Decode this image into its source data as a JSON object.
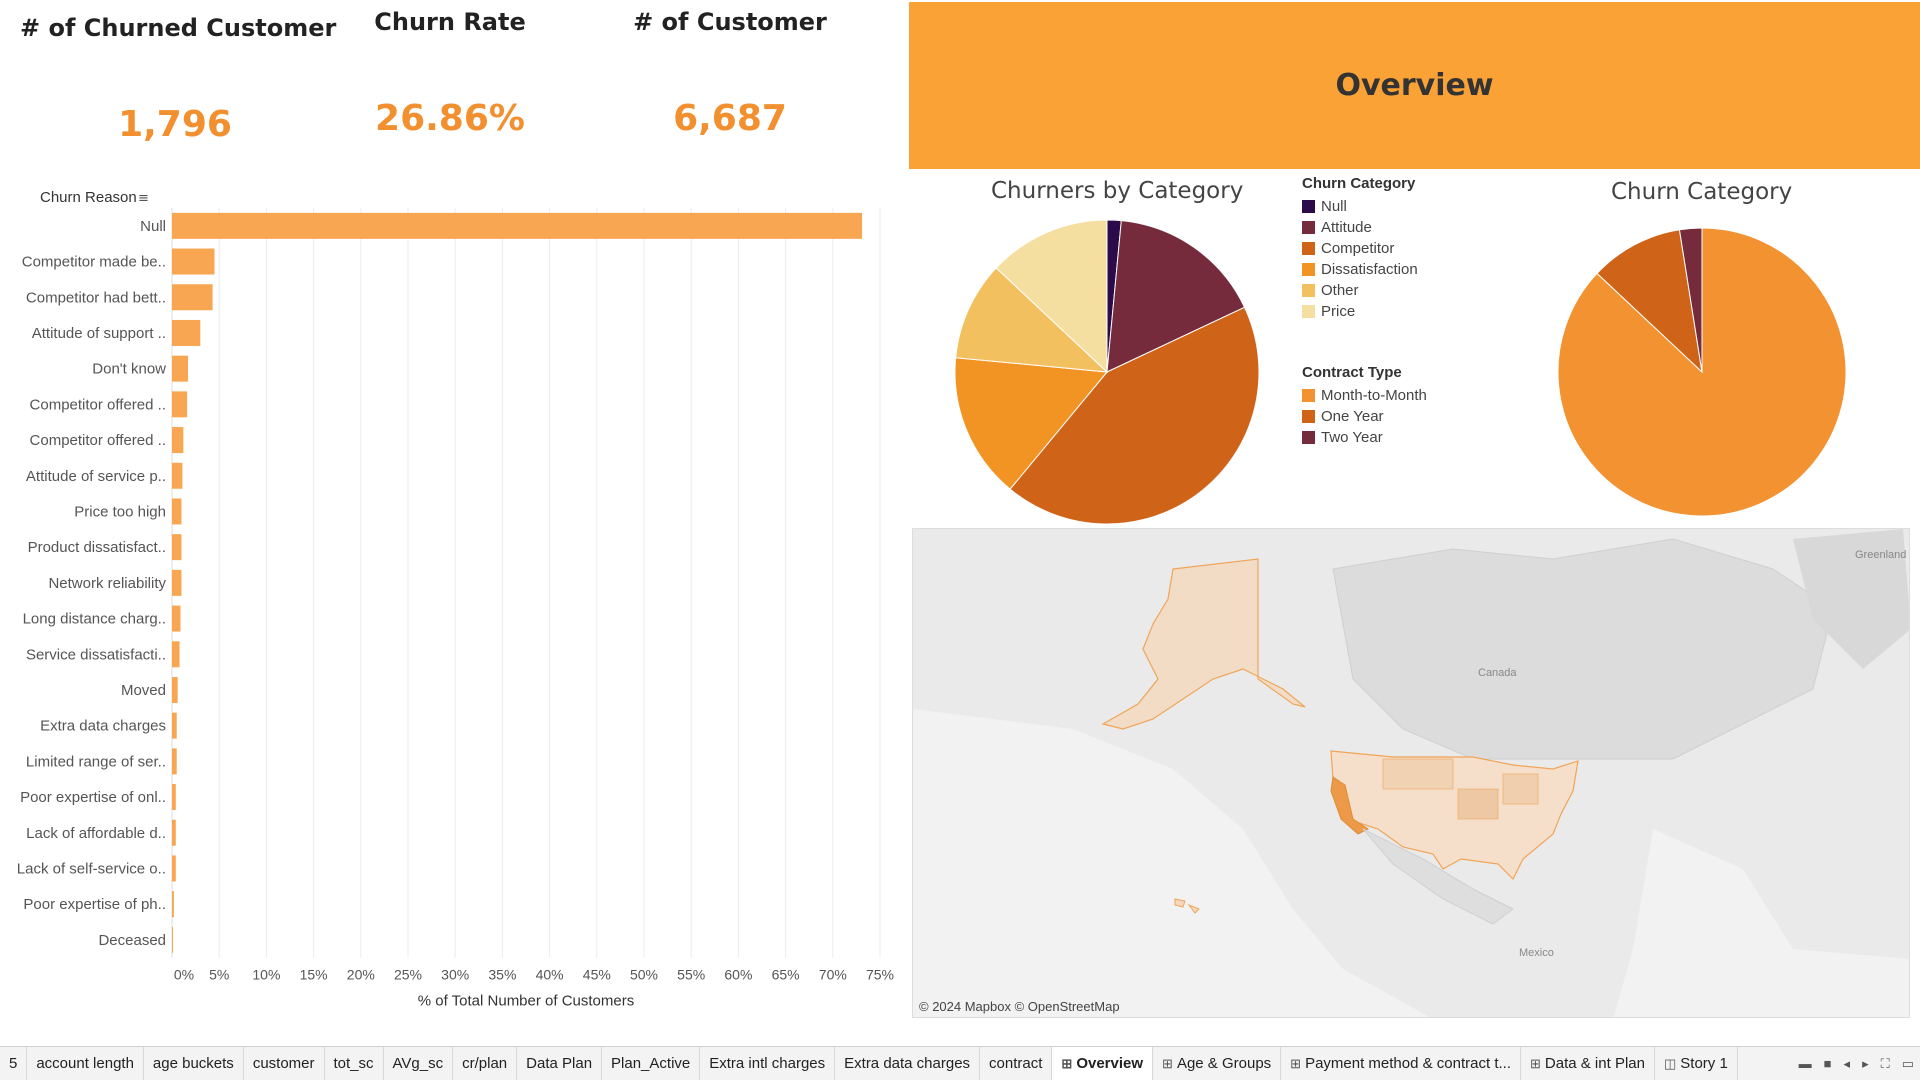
{
  "kpis": {
    "churned": {
      "title": "# of Churned Customer",
      "value": "1,796"
    },
    "rate": {
      "title": "Churn Rate",
      "value": "26.86%"
    },
    "customers": {
      "title": "# of Customer",
      "value": "6,687"
    }
  },
  "banner": {
    "title": "Overview"
  },
  "colors": {
    "accent": "#faa236",
    "kpi_value": "#f2902f",
    "bar": "#f8a652",
    "null": "#2b0b4a",
    "attitude": "#752b3c",
    "competitor": "#cf6419",
    "dissatisfaction": "#f29423",
    "other": "#f3c060",
    "price": "#f5dfa0",
    "month_to_month": "#f29230",
    "one_year": "#cf6419",
    "two_year": "#752b3c"
  },
  "bar_chart": {
    "header": "Churn Reason",
    "xlabel": "% of Total Number of Customers"
  },
  "pie1": {
    "title": "Churners by Category"
  },
  "pie2": {
    "title": "Churn Category"
  },
  "legend_category": {
    "title": "Churn Category",
    "items": [
      "Null",
      "Attitude",
      "Competitor",
      "Dissatisfaction",
      "Other",
      "Price"
    ]
  },
  "legend_contract": {
    "title": "Contract Type",
    "items": [
      "Month-to-Month",
      "One Year",
      "Two Year"
    ]
  },
  "map": {
    "labels": {
      "canada": "Canada",
      "greenland": "Greenland",
      "mexico": "Mexico"
    },
    "credit": "© 2024 Mapbox © OpenStreetMap"
  },
  "chart_data": [
    {
      "type": "bar",
      "orientation": "horizontal",
      "ylabel": "Churn Reason",
      "xlabel": "% of Total Number of Customers",
      "categories": [
        "Null",
        "Competitor made be..",
        "Competitor had bett..",
        "Attitude of support ..",
        "Don't know",
        "Competitor offered ..",
        "Competitor offered ..",
        "Attitude of service p..",
        "Price too high",
        "Product dissatisfact..",
        "Network reliability",
        "Long distance charg..",
        "Service dissatisfacti..",
        "Moved",
        "Extra data charges",
        "Limited range of ser..",
        "Poor expertise of onl..",
        "Lack of affordable d..",
        "Lack of self-service o..",
        "Poor expertise of ph..",
        "Deceased"
      ],
      "values": [
        73.1,
        4.5,
        4.3,
        3.0,
        1.7,
        1.6,
        1.2,
        1.1,
        1.0,
        1.0,
        1.0,
        0.9,
        0.8,
        0.6,
        0.5,
        0.5,
        0.4,
        0.4,
        0.4,
        0.2,
        0.1
      ],
      "xticks": [
        "0%",
        "5%",
        "10%",
        "15%",
        "20%",
        "25%",
        "30%",
        "35%",
        "40%",
        "45%",
        "50%",
        "55%",
        "60%",
        "65%",
        "70%",
        "75%"
      ],
      "xlim": [
        0,
        75
      ],
      "grid": true
    },
    {
      "type": "pie",
      "title": "Churners by Category",
      "categories": [
        "Null",
        "Attitude",
        "Competitor",
        "Dissatisfaction",
        "Other",
        "Price"
      ],
      "values": [
        1.5,
        16.5,
        43.0,
        15.5,
        10.5,
        13.0
      ]
    },
    {
      "type": "pie",
      "title": "Churn Category",
      "categories": [
        "Month-to-Month",
        "One Year",
        "Two Year"
      ],
      "values": [
        87.0,
        10.5,
        2.5
      ]
    }
  ],
  "tabs": [
    {
      "label": "5",
      "icon": ""
    },
    {
      "label": "account length",
      "icon": ""
    },
    {
      "label": "age buckets",
      "icon": ""
    },
    {
      "label": "customer",
      "icon": ""
    },
    {
      "label": "tot_sc",
      "icon": ""
    },
    {
      "label": "AVg_sc",
      "icon": ""
    },
    {
      "label": "cr/plan",
      "icon": ""
    },
    {
      "label": "Data Plan",
      "icon": ""
    },
    {
      "label": "Plan_Active",
      "icon": ""
    },
    {
      "label": "Extra intl charges",
      "icon": ""
    },
    {
      "label": "Extra data charges",
      "icon": ""
    },
    {
      "label": "contract",
      "icon": ""
    },
    {
      "label": "Overview",
      "icon": "⊞",
      "active": true
    },
    {
      "label": "Age & Groups",
      "icon": "⊞"
    },
    {
      "label": "Payment method & contract t...",
      "icon": "⊞"
    },
    {
      "label": "Data & int Plan",
      "icon": "⊞"
    },
    {
      "label": "Story 1",
      "icon": "◫"
    }
  ]
}
